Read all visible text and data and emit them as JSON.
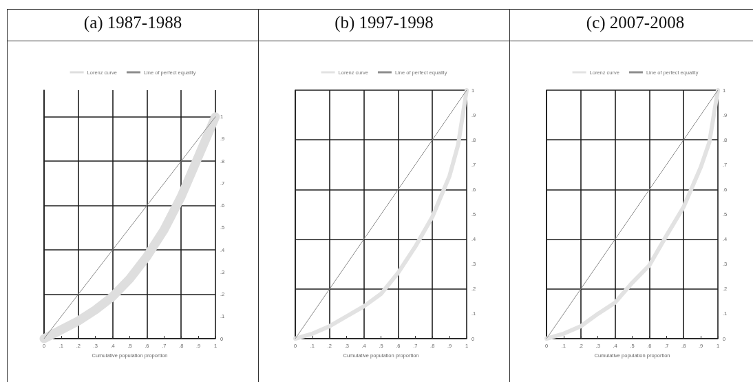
{
  "chart_data": [
    {
      "type": "line",
      "title": "(a) 1987-1988",
      "xlabel": "Cumulative population proportion",
      "legend": "top",
      "grid": true,
      "marker": "none",
      "xlim": [
        0,
        1
      ],
      "ylim": [
        0,
        1.12
      ],
      "xticks": [
        {
          "value": 0,
          "label": "0"
        },
        {
          "value": 0.1,
          "label": ".1"
        },
        {
          "value": 0.2,
          "label": ".2"
        },
        {
          "value": 0.3,
          "label": ".3"
        },
        {
          "value": 0.4,
          "label": ".4"
        },
        {
          "value": 0.5,
          "label": ".5"
        },
        {
          "value": 0.6,
          "label": ".6"
        },
        {
          "value": 0.7,
          "label": ".7"
        },
        {
          "value": 0.8,
          "label": ".8"
        },
        {
          "value": 0.9,
          "label": ".9"
        },
        {
          "value": 1,
          "label": "1"
        }
      ],
      "yticks": [
        {
          "value": 0,
          "label": "0"
        },
        {
          "value": 0.1,
          "label": ".1"
        },
        {
          "value": 0.2,
          "label": ".2"
        },
        {
          "value": 0.3,
          "label": ".3"
        },
        {
          "value": 0.4,
          "label": ".4"
        },
        {
          "value": 0.5,
          "label": ".5"
        },
        {
          "value": 0.6,
          "label": ".6"
        },
        {
          "value": 0.7,
          "label": ".7"
        },
        {
          "value": 0.8,
          "label": ".8"
        },
        {
          "value": 0.9,
          "label": ".9"
        },
        {
          "value": 1,
          "label": "1"
        }
      ],
      "series": [
        {
          "name": "Lorenz curve",
          "color": "#dedede",
          "x": [
            0,
            0.1,
            0.2,
            0.3,
            0.4,
            0.5,
            0.6,
            0.7,
            0.8,
            0.9,
            1
          ],
          "values": [
            0,
            0.04,
            0.08,
            0.13,
            0.19,
            0.27,
            0.37,
            0.49,
            0.64,
            0.82,
            1
          ]
        },
        {
          "name": "Line of perfect equality",
          "color": "#8c8c8c",
          "x": [
            0,
            1
          ],
          "values": [
            0,
            1
          ]
        }
      ]
    },
    {
      "type": "line",
      "title": "(b) 1997-1998",
      "xlabel": "Cumulative population proportion",
      "legend": "top",
      "grid": true,
      "marker": "none",
      "xlim": [
        0,
        1
      ],
      "ylim": [
        0,
        1
      ],
      "xticks": [
        {
          "value": 0,
          "label": "0"
        },
        {
          "value": 0.1,
          "label": ".1"
        },
        {
          "value": 0.2,
          "label": ".2"
        },
        {
          "value": 0.3,
          "label": ".3"
        },
        {
          "value": 0.4,
          "label": ".4"
        },
        {
          "value": 0.5,
          "label": ".5"
        },
        {
          "value": 0.6,
          "label": ".6"
        },
        {
          "value": 0.7,
          "label": ".7"
        },
        {
          "value": 0.8,
          "label": ".8"
        },
        {
          "value": 0.9,
          "label": ".9"
        },
        {
          "value": 1,
          "label": "1"
        }
      ],
      "yticks": [
        {
          "value": 0,
          "label": "0"
        },
        {
          "value": 0.1,
          "label": ".1"
        },
        {
          "value": 0.2,
          "label": ".2"
        },
        {
          "value": 0.3,
          "label": ".3"
        },
        {
          "value": 0.4,
          "label": ".4"
        },
        {
          "value": 0.5,
          "label": ".5"
        },
        {
          "value": 0.6,
          "label": ".6"
        },
        {
          "value": 0.7,
          "label": ".7"
        },
        {
          "value": 0.8,
          "label": ".8"
        },
        {
          "value": 0.9,
          "label": ".9"
        },
        {
          "value": 1,
          "label": "1"
        }
      ],
      "series": [
        {
          "name": "Lorenz curve",
          "color": "#e2e2e2",
          "x": [
            0,
            0.1,
            0.2,
            0.3,
            0.4,
            0.5,
            0.6,
            0.7,
            0.8,
            0.9,
            0.95,
            1
          ],
          "values": [
            0,
            0.02,
            0.05,
            0.09,
            0.13,
            0.18,
            0.265,
            0.37,
            0.49,
            0.655,
            0.78,
            1
          ]
        },
        {
          "name": "Line of perfect equality",
          "color": "#8c8c8c",
          "x": [
            0,
            1
          ],
          "values": [
            0,
            1
          ]
        }
      ]
    },
    {
      "type": "line",
      "title": "(c) 2007-2008",
      "xlabel": "Cumulative population proportion",
      "legend": "top",
      "grid": true,
      "marker": "none",
      "xlim": [
        0,
        1
      ],
      "ylim": [
        0,
        1
      ],
      "xticks": [
        {
          "value": 0,
          "label": "0"
        },
        {
          "value": 0.1,
          "label": ".1"
        },
        {
          "value": 0.2,
          "label": ".2"
        },
        {
          "value": 0.3,
          "label": ".3"
        },
        {
          "value": 0.4,
          "label": ".4"
        },
        {
          "value": 0.5,
          "label": ".5"
        },
        {
          "value": 0.6,
          "label": ".6"
        },
        {
          "value": 0.7,
          "label": ".7"
        },
        {
          "value": 0.8,
          "label": ".8"
        },
        {
          "value": 0.9,
          "label": ".9"
        },
        {
          "value": 1,
          "label": "1"
        }
      ],
      "yticks": [
        {
          "value": 0,
          "label": "0"
        },
        {
          "value": 0.1,
          "label": ".1"
        },
        {
          "value": 0.2,
          "label": ".2"
        },
        {
          "value": 0.3,
          "label": ".3"
        },
        {
          "value": 0.4,
          "label": ".4"
        },
        {
          "value": 0.5,
          "label": ".5"
        },
        {
          "value": 0.6,
          "label": ".6"
        },
        {
          "value": 0.7,
          "label": ".7"
        },
        {
          "value": 0.8,
          "label": ".8"
        },
        {
          "value": 0.9,
          "label": ".9"
        },
        {
          "value": 1,
          "label": "1"
        }
      ],
      "series": [
        {
          "name": "Lorenz curve",
          "color": "#e2e2e2",
          "x": [
            0,
            0.1,
            0.2,
            0.3,
            0.4,
            0.5,
            0.6,
            0.7,
            0.8,
            0.9,
            0.95,
            1
          ],
          "values": [
            0,
            0.02,
            0.05,
            0.1,
            0.145,
            0.225,
            0.295,
            0.415,
            0.53,
            0.69,
            0.79,
            1
          ]
        },
        {
          "name": "Line of perfect equality",
          "color": "#8c8c8c",
          "x": [
            0,
            1
          ],
          "values": [
            0,
            1
          ]
        }
      ]
    }
  ]
}
